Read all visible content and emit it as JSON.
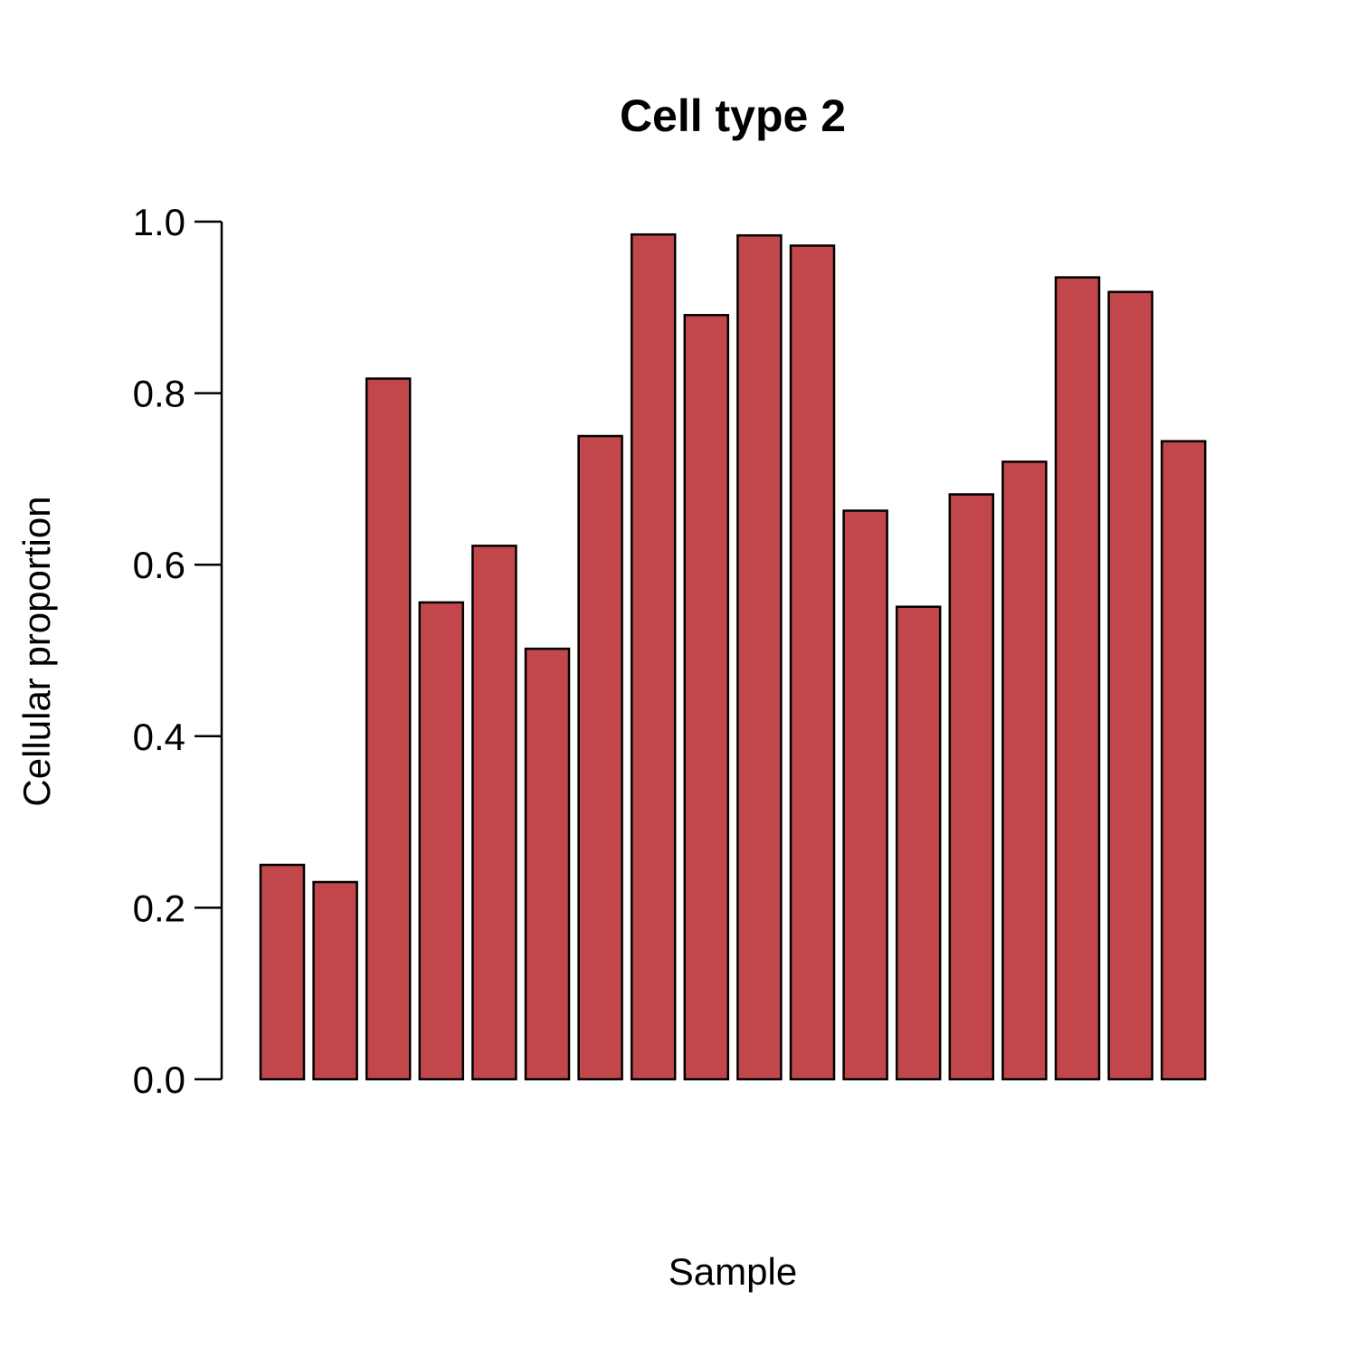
{
  "chart_data": {
    "type": "bar",
    "title": "Cell type 2",
    "xlabel": "Sample",
    "ylabel": "Cellular proportion",
    "ylim": [
      0,
      1
    ],
    "yticks": [
      "0.0",
      "0.2",
      "0.4",
      "0.6",
      "0.8",
      "1.0"
    ],
    "grid": false,
    "bar_color": "#c1474b",
    "values": [
      0.25,
      0.23,
      0.817,
      0.556,
      0.622,
      0.502,
      0.75,
      0.985,
      0.891,
      0.984,
      0.972,
      0.663,
      0.551,
      0.682,
      0.72,
      0.935,
      0.918,
      0.744
    ]
  }
}
